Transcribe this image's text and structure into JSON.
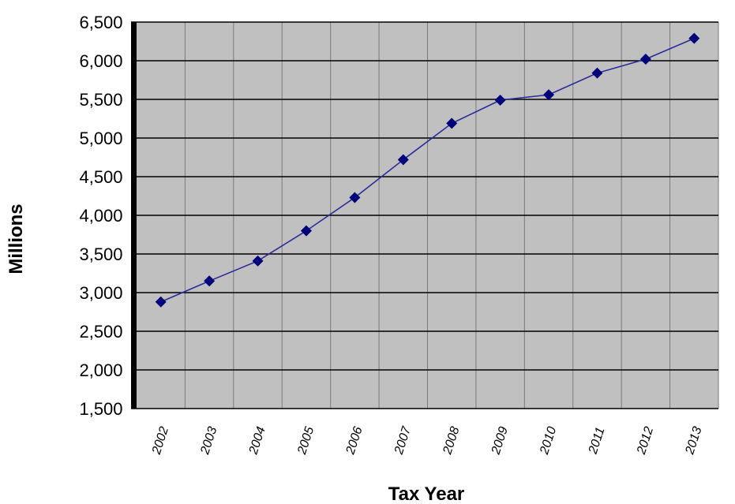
{
  "chart_data": {
    "type": "line",
    "title": "",
    "xlabel": "Tax Year",
    "ylabel": "Millions",
    "categories": [
      "2002",
      "2003",
      "2004",
      "2005",
      "2006",
      "2007",
      "2008",
      "2009",
      "2010",
      "2011",
      "2012",
      "2013"
    ],
    "series": [
      {
        "name": "",
        "values": [
          2880,
          3150,
          3410,
          3800,
          4230,
          4720,
          5190,
          5490,
          5560,
          5840,
          6020,
          6290
        ]
      }
    ],
    "ylim": [
      1500,
      6500
    ],
    "yticks": [
      1500,
      2000,
      2500,
      3000,
      3500,
      4000,
      4500,
      5000,
      5500,
      6000,
      6500
    ],
    "ytick_labels": [
      "1,500",
      "2,000",
      "2,500",
      "3,000",
      "3,500",
      "4,000",
      "4,500",
      "5,000",
      "5,500",
      "6,000",
      "6,500"
    ],
    "grid": true,
    "legend": "none",
    "colors": {
      "plot_background": "#c0c0c0",
      "series_line": "#2b2b9a",
      "marker": "#00007a",
      "gridline_major": "#000000",
      "gridline_vertical": "#7a7a7a",
      "left_axis": "#000000"
    }
  }
}
